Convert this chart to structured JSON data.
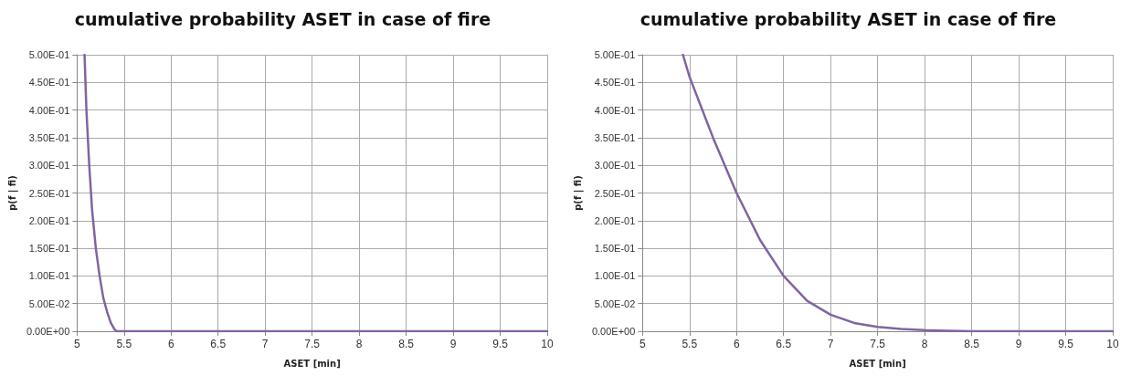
{
  "chart_data": [
    {
      "type": "line",
      "title": "cumulative probability ASET in case of fire",
      "xlabel": "ASET [min]",
      "ylabel": "p(f | fi)",
      "xlim": [
        5,
        10
      ],
      "xticks": [
        5,
        5.5,
        6,
        6.5,
        7,
        7.5,
        8,
        8.5,
        9,
        9.5,
        10
      ],
      "ylim": [
        0,
        0.5
      ],
      "yticks": [
        {
          "value": 0,
          "label": "0.00E+00"
        },
        {
          "value": 0.05,
          "label": "5.00E-02"
        },
        {
          "value": 0.1,
          "label": "1.00E-01"
        },
        {
          "value": 0.15,
          "label": "1.50E-01"
        },
        {
          "value": 0.2,
          "label": "2.00E-01"
        },
        {
          "value": 0.25,
          "label": "2.50E-01"
        },
        {
          "value": 0.3,
          "label": "3.00E-01"
        },
        {
          "value": 0.35,
          "label": "3.50E-01"
        },
        {
          "value": 0.4,
          "label": "4.00E-01"
        },
        {
          "value": 0.45,
          "label": "4.50E-01"
        },
        {
          "value": 0.5,
          "label": "5.00E-01"
        }
      ],
      "grid": true,
      "marker": "none",
      "line_style": "solid",
      "series": [
        {
          "color": "#8064a2",
          "x": [
            5.08,
            5.1,
            5.13,
            5.16,
            5.2,
            5.24,
            5.28,
            5.32,
            5.36,
            5.4,
            5.42,
            5.5,
            6,
            7,
            8,
            9,
            10
          ],
          "values": [
            0.5,
            0.4,
            0.3,
            0.22,
            0.15,
            0.1,
            0.06,
            0.035,
            0.015,
            0.003,
            0,
            0,
            0,
            0,
            0,
            0,
            0
          ]
        }
      ]
    },
    {
      "type": "line",
      "title": "cumulative probability ASET in case of fire",
      "xlabel": "ASET [min]",
      "ylabel": "p(f | fi)",
      "xlim": [
        5,
        10
      ],
      "xticks": [
        5,
        5.5,
        6,
        6.5,
        7,
        7.5,
        8,
        8.5,
        9,
        9.5,
        10
      ],
      "ylim": [
        0,
        0.5
      ],
      "yticks": [
        {
          "value": 0,
          "label": "0.00E+00"
        },
        {
          "value": 0.05,
          "label": "5.00E-02"
        },
        {
          "value": 0.1,
          "label": "1.00E-01"
        },
        {
          "value": 0.15,
          "label": "1.50E-01"
        },
        {
          "value": 0.2,
          "label": "2.00E-01"
        },
        {
          "value": 0.25,
          "label": "2.50E-01"
        },
        {
          "value": 0.3,
          "label": "3.00E-01"
        },
        {
          "value": 0.35,
          "label": "3.50E-01"
        },
        {
          "value": 0.4,
          "label": "4.00E-01"
        },
        {
          "value": 0.45,
          "label": "4.50E-01"
        },
        {
          "value": 0.5,
          "label": "5.00E-01"
        }
      ],
      "grid": true,
      "marker": "none",
      "line_style": "solid",
      "series": [
        {
          "color": "#8064a2",
          "x": [
            5.43,
            5.5,
            5.75,
            6,
            6.25,
            6.5,
            6.75,
            7,
            7.25,
            7.5,
            7.75,
            8,
            8.25,
            8.5,
            9,
            9.5,
            10
          ],
          "values": [
            0.5,
            0.46,
            0.35,
            0.25,
            0.165,
            0.1,
            0.055,
            0.03,
            0.015,
            0.008,
            0.004,
            0.002,
            0.001,
            0,
            0,
            0,
            0
          ]
        }
      ]
    }
  ]
}
